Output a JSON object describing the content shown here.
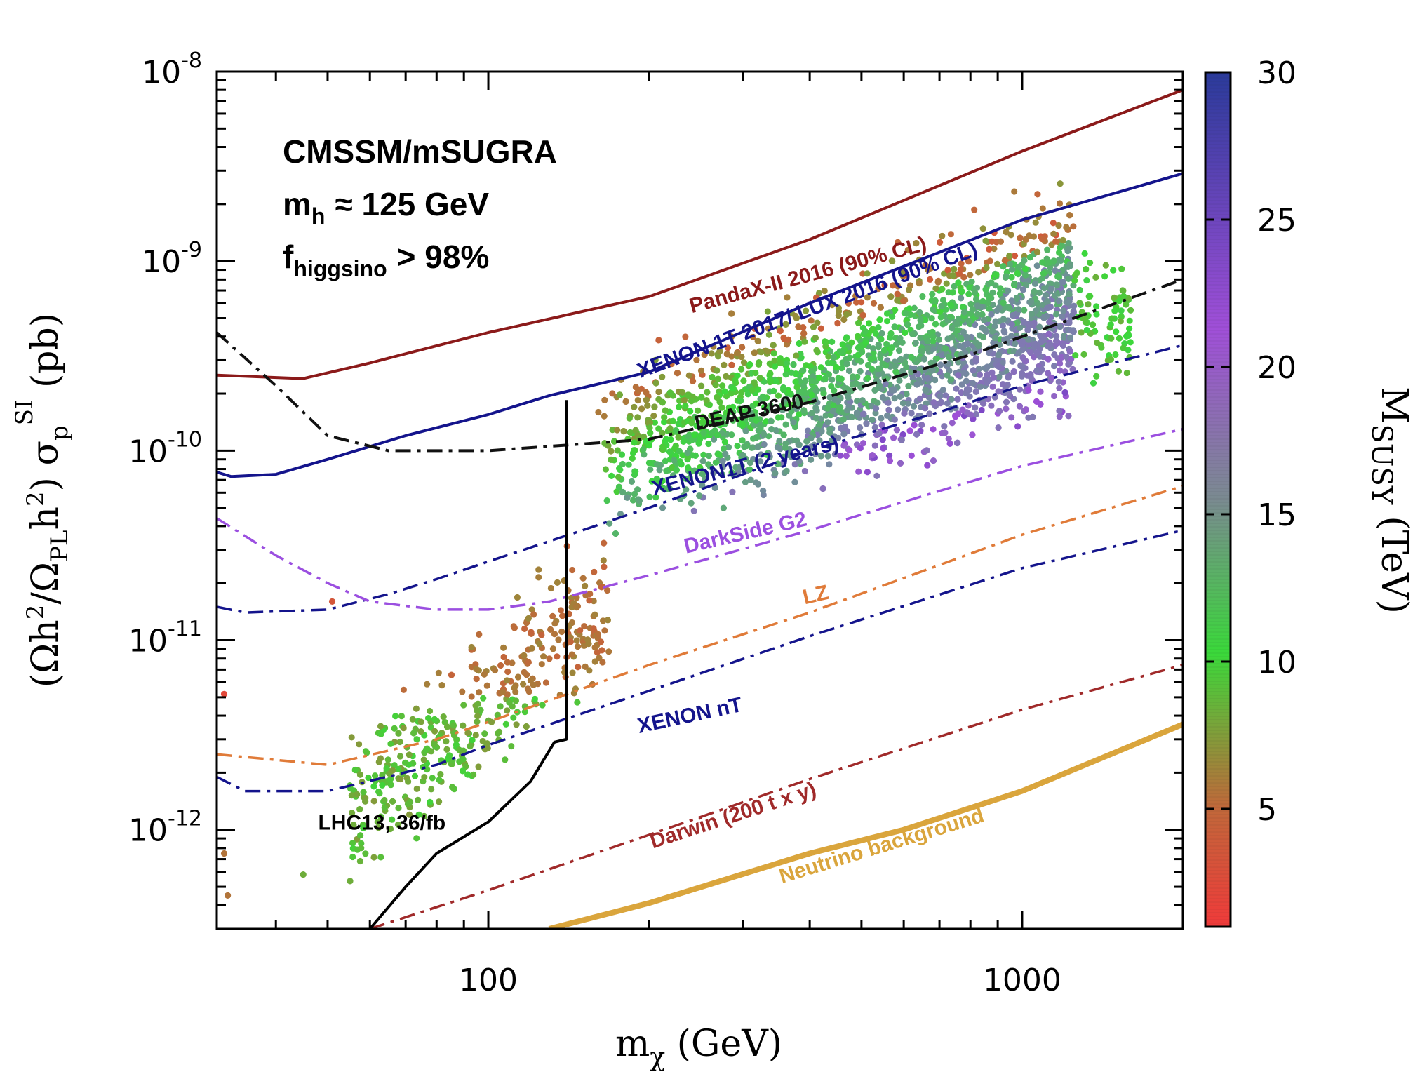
{
  "chart_data": {
    "type": "scatter",
    "title": "",
    "xlabel": "m_χ (GeV)",
    "ylabel": "(Ωh²/Ω_PL h²) σ_p^SI (pb)",
    "x_scale": "log",
    "y_scale": "log",
    "xlim": [
      31,
      2000
    ],
    "ylim": [
      3e-13,
      1e-08
    ],
    "x_ticks": [
      {
        "value": 100,
        "label": "100"
      },
      {
        "value": 1000,
        "label": "1000"
      }
    ],
    "y_ticks": [
      {
        "value": 1e-12,
        "base": "10",
        "exp": "-12"
      },
      {
        "value": 1e-11,
        "base": "10",
        "exp": "-11"
      },
      {
        "value": 1e-10,
        "base": "10",
        "exp": "-10"
      },
      {
        "value": 1e-09,
        "base": "10",
        "exp": "-9"
      },
      {
        "value": 1e-08,
        "base": "10",
        "exp": "-8"
      }
    ],
    "info_lines": [
      "CMSSM/mSUGRA",
      "m",
      "h",
      "≈ 125 GeV",
      "f",
      "higgsino",
      "> 98%"
    ],
    "colorbar": {
      "label": "M",
      "label_sub": "SUSY",
      "label_unit": "(TeV)",
      "range": [
        1,
        30
      ],
      "ticks": [
        {
          "value": 5,
          "label": "5"
        },
        {
          "value": 10,
          "label": "10"
        },
        {
          "value": 15,
          "label": "15"
        },
        {
          "value": 20,
          "label": "20"
        },
        {
          "value": 25,
          "label": "25"
        },
        {
          "value": 30,
          "label": "30"
        }
      ],
      "colors": [
        "#f03a3a",
        "#be6a3a",
        "#3ad93a",
        "#7d7dae",
        "#a04fd8",
        "#2a3a9a"
      ]
    },
    "series": [
      {
        "name": "PandaX-II 2016 (90% CL)",
        "color": "#8b1a1a",
        "style": "solid",
        "width": 4,
        "x": [
          31,
          45,
          60,
          100,
          200,
          400,
          1000,
          2000
        ],
        "y": [
          2.5e-10,
          2.4e-10,
          2.9e-10,
          4.2e-10,
          6.5e-10,
          1.3e-09,
          3.8e-09,
          8e-09
        ]
      },
      {
        "name": "XENON 1T 2017/ LUX 2016 (90% CL)",
        "color": "#14148c",
        "style": "solid",
        "width": 4,
        "x": [
          31,
          33,
          40,
          50,
          70,
          100,
          130,
          200,
          400,
          1000,
          2000
        ],
        "y": [
          7.7e-11,
          7.3e-11,
          7.5e-11,
          9e-11,
          1.2e-10,
          1.55e-10,
          1.95e-10,
          2.6e-10,
          6e-10,
          1.65e-09,
          2.9e-09
        ]
      },
      {
        "name": "DEAP 3600",
        "color": "#111111",
        "style": "dashdot",
        "width": 4,
        "x": [
          31,
          40,
          50,
          65,
          80,
          100,
          200,
          400,
          800,
          1200,
          2000
        ],
        "y": [
          4.2e-10,
          2.2e-10,
          1.2e-10,
          1e-10,
          1e-10,
          1e-10,
          1.15e-10,
          1.8e-10,
          3.2e-10,
          4.8e-10,
          8e-10
        ]
      },
      {
        "name": "XENON1T (2 years)",
        "color": "#14148c",
        "style": "dashdot",
        "width": 3.5,
        "x": [
          31,
          35,
          50,
          65,
          80,
          100,
          150,
          200,
          400,
          700,
          1000,
          2000
        ],
        "y": [
          1.5e-11,
          1.4e-11,
          1.45e-11,
          1.75e-11,
          2.1e-11,
          2.6e-11,
          3.8e-11,
          5e-11,
          1e-10,
          1.6e-10,
          2.2e-10,
          3.6e-10
        ]
      },
      {
        "name": "DarkSide G2",
        "color": "#9b4fe0",
        "style": "dashdot",
        "width": 3.5,
        "x": [
          31,
          40,
          50,
          60,
          80,
          100,
          130,
          200,
          400,
          1000,
          2000
        ],
        "y": [
          4.4e-11,
          2.8e-11,
          2e-11,
          1.6e-11,
          1.45e-11,
          1.45e-11,
          1.6e-11,
          2.2e-11,
          3.8e-11,
          8.3e-11,
          1.3e-10
        ]
      },
      {
        "name": "LZ",
        "color": "#e07b39",
        "style": "dashdot",
        "width": 3.5,
        "x": [
          31,
          50,
          80,
          100,
          200,
          400,
          1000,
          2000
        ],
        "y": [
          2.5e-12,
          2.2e-12,
          3e-12,
          3.7e-12,
          7.4e-12,
          1.4e-11,
          3.6e-11,
          6.5e-11
        ]
      },
      {
        "name": "XENON nT",
        "color": "#14148c",
        "style": "dashdot",
        "width": 3.5,
        "x": [
          31,
          35,
          50,
          80,
          100,
          200,
          400,
          1000,
          2000
        ],
        "y": [
          1.9e-12,
          1.6e-12,
          1.6e-12,
          2.2e-12,
          2.8e-12,
          5.4e-12,
          1.05e-11,
          2.4e-11,
          3.8e-11
        ]
      },
      {
        "name": "Darwin (200 t x y)",
        "color": "#a02a2a",
        "style": "dashdot",
        "width": 3.5,
        "x": [
          60,
          100,
          200,
          400,
          1000,
          2000
        ],
        "y": [
          3e-13,
          4.8e-13,
          9.4e-13,
          1.85e-12,
          4.3e-12,
          7.4e-12
        ]
      },
      {
        "name": "Neutrino background",
        "color": "#daa53c",
        "style": "solid",
        "width": 8,
        "x": [
          130,
          200,
          400,
          600,
          1000,
          2000
        ],
        "y": [
          3e-13,
          4.1e-13,
          7.5e-13,
          1e-12,
          1.6e-12,
          3.6e-12
        ]
      },
      {
        "name": "LHC13, 36/fb",
        "color": "#000000",
        "style": "solid",
        "width": 4,
        "x": [
          60,
          70,
          80,
          100,
          120,
          133,
          140,
          140
        ],
        "y": [
          3e-13,
          5e-13,
          7.5e-13,
          1.1e-12,
          1.8e-12,
          2.9e-12,
          3e-12,
          1.85e-10
        ]
      }
    ],
    "labels": [
      {
        "text": "PandaX-II 2016 (90% CL)",
        "x": 400,
        "y": 7.8e-10,
        "angle": -15,
        "color": "#8b1a1a"
      },
      {
        "text": "XENON 1T 2017/ LUX 2016 (90% CL)",
        "x": 400,
        "y": 5.1e-10,
        "angle": -20,
        "color": "#14148c"
      },
      {
        "text": "DEAP 3600",
        "x": 310,
        "y": 1.47e-10,
        "angle": -12,
        "color": "#111111"
      },
      {
        "text": "XENON1T (2 years)",
        "x": 305,
        "y": 7.7e-11,
        "angle": -14,
        "color": "#14148c"
      },
      {
        "text": "DarkSide G2",
        "x": 305,
        "y": 3.4e-11,
        "angle": -13,
        "color": "#9b4fe0"
      },
      {
        "text": "LZ",
        "x": 413,
        "y": 1.6e-11,
        "angle": -13,
        "color": "#e07b39"
      },
      {
        "text": "XENON nT",
        "x": 240,
        "y": 3.7e-12,
        "angle": -12,
        "color": "#14148c"
      },
      {
        "text": "Darwin (200 t x y)",
        "x": 290,
        "y": 1.1e-12,
        "angle": -18,
        "color": "#a02a2a"
      },
      {
        "text": "Neutrino background",
        "x": 550,
        "y": 7.6e-13,
        "angle": -17,
        "color": "#daa53c"
      },
      {
        "text": "LHC13, 36/fb",
        "x": 48,
        "y": 1e-12,
        "angle": 0,
        "color": "#000000"
      }
    ],
    "scatter_region": {
      "x_range": [
        35,
        1600
      ],
      "points_color_by": "M_SUSY (TeV)"
    }
  }
}
